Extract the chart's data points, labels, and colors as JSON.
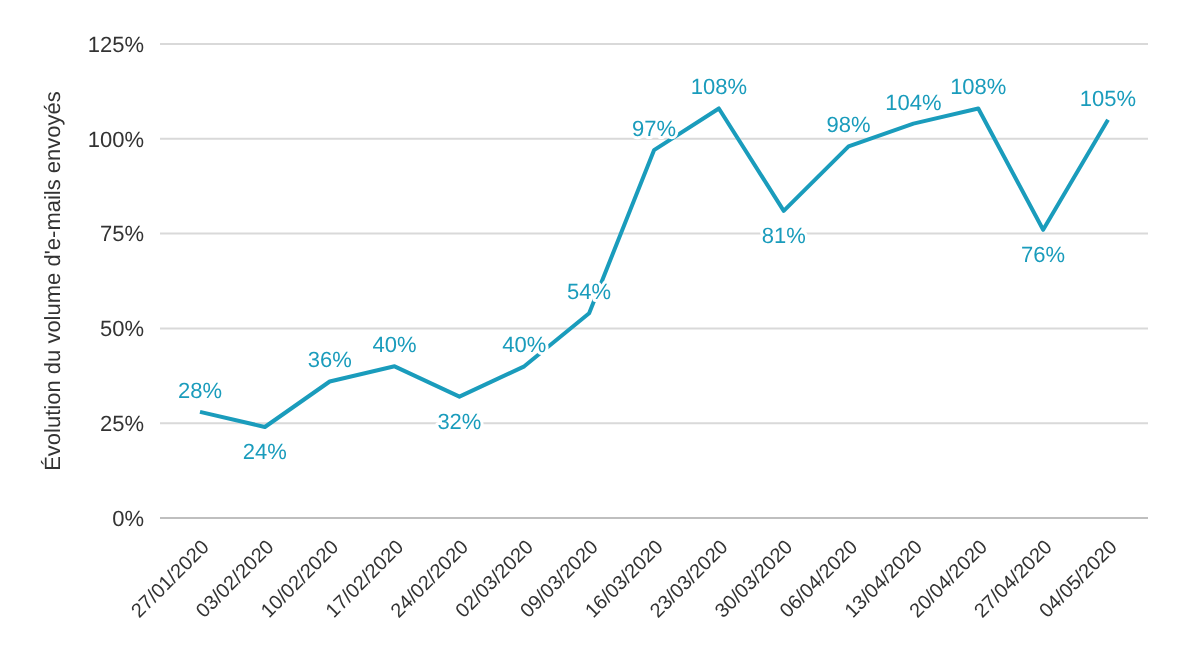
{
  "chart_data": {
    "type": "line",
    "ylabel": "Évolution du volume d'e-mails envoyés",
    "categories": [
      "27/01/2020",
      "03/02/2020",
      "10/02/2020",
      "17/02/2020",
      "24/02/2020",
      "02/03/2020",
      "09/03/2020",
      "16/03/2020",
      "23/03/2020",
      "30/03/2020",
      "06/04/2020",
      "13/04/2020",
      "20/04/2020",
      "27/04/2020",
      "04/05/2020"
    ],
    "series": [
      {
        "color": "#1a9cbc",
        "values": [
          28,
          24,
          36,
          40,
          32,
          40,
          54,
          97,
          108,
          81,
          98,
          104,
          108,
          76,
          105
        ],
        "value_labels": [
          "28%",
          "24%",
          "36%",
          "40%",
          "32%",
          "40%",
          "54%",
          "97%",
          "108%",
          "81%",
          "98%",
          "104%",
          "108%",
          "76%",
          "105%"
        ]
      }
    ],
    "ylim": [
      0,
      125
    ],
    "yticks": [
      {
        "value": 0,
        "label": "0%"
      },
      {
        "value": 25,
        "label": "25%"
      },
      {
        "value": 50,
        "label": "50%"
      },
      {
        "value": 75,
        "label": "75%"
      },
      {
        "value": 100,
        "label": "100%"
      },
      {
        "value": 125,
        "label": "125%"
      }
    ],
    "grid": "y",
    "marker": "none",
    "line_style": "solid"
  }
}
